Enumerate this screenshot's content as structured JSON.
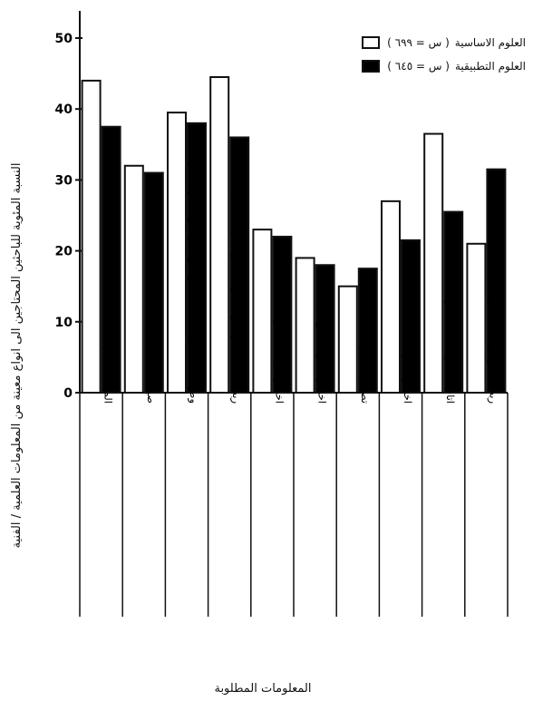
{
  "chart_data": {
    "type": "bar",
    "ylabel": "النسبة المئوية للباحثين المحتاجين الى انواع معينة من المعلومات العلمية / الفنية",
    "xlabel": "المعلومات المطلوبة",
    "ylim": [
      0,
      50
    ],
    "yticks": [
      "0",
      "10",
      "20",
      "30",
      "40",
      "50"
    ],
    "legend_position": "top-right",
    "categories": [
      "المساعدة في تحديد المشكلة",
      "صياغة حل علمي",
      "وضع البحث في سياقه الصحيح بين غيره من البحوث التي تمت",
      "ربط البحث بغيره من البحوث الجارية في المجال",
      "اختيار طريقة لتجميع البيانات",
      "اختيار اسلوب لجمع البيانات",
      "تصميم الأجهزة",
      "اختيار اسلوب لتحليل البيانات",
      "اتاحة القدرة على تفسير البيانات",
      "ربط النتائج برصيد المعرفة في المجال"
    ],
    "series": [
      {
        "name": "العلوم الاساسية",
        "n_label": "( س = ٦٩٩ )",
        "color": "#ffffff",
        "values": [
          44,
          32,
          39.5,
          44.5,
          23,
          19,
          15,
          27,
          36.5,
          21
        ]
      },
      {
        "name": "العلوم التطبيقية",
        "n_label": "( س = ٦٤٥ )",
        "color": "#000000",
        "values": [
          37.5,
          31,
          38,
          36,
          22,
          18,
          17.5,
          21.5,
          25.5,
          31.5
        ]
      }
    ]
  }
}
